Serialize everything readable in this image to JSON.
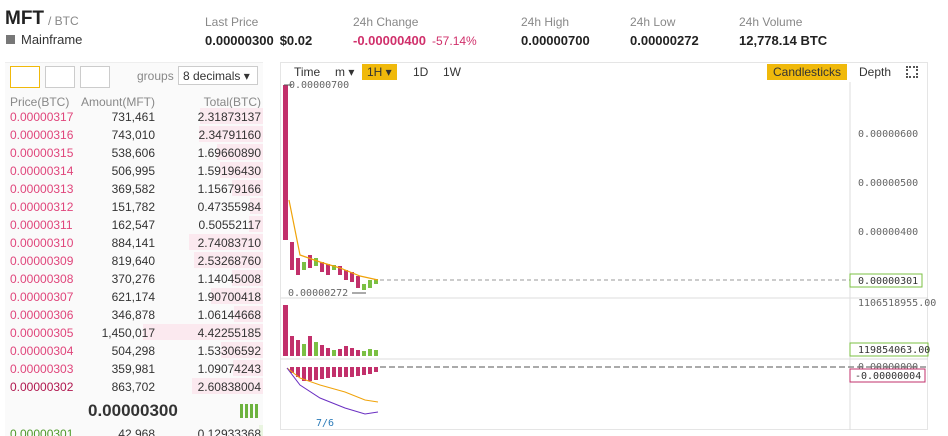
{
  "header": {
    "symbol": "MFT",
    "quote": "/ BTC",
    "name": "Mainframe",
    "stats": [
      {
        "label": "Last Price",
        "value": "0.00000300",
        "extra": "$0.02"
      },
      {
        "label": "24h Change",
        "value": "-0.00000400",
        "extra": "-57.14%"
      },
      {
        "label": "24h High",
        "value": "0.00000700"
      },
      {
        "label": "24h Low",
        "value": "0.00000272"
      },
      {
        "label": "24h Volume",
        "value": "12,778.14 BTC"
      }
    ]
  },
  "order_book": {
    "groups_label": "groups",
    "decimals": "8 decimals",
    "columns": [
      "Price(BTC)",
      "Amount(MFT)",
      "Total(BTC)"
    ],
    "asks": [
      [
        "0.00000317",
        "731,461",
        "2.31873137"
      ],
      [
        "0.00000316",
        "743,010",
        "2.34791160"
      ],
      [
        "0.00000315",
        "538,606",
        "1.69660890"
      ],
      [
        "0.00000314",
        "506,995",
        "1.59196430"
      ],
      [
        "0.00000313",
        "369,582",
        "1.15679166"
      ],
      [
        "0.00000312",
        "151,782",
        "0.47355984"
      ],
      [
        "0.00000311",
        "162,547",
        "0.50552117"
      ],
      [
        "0.00000310",
        "884,141",
        "2.74083710"
      ],
      [
        "0.00000309",
        "819,640",
        "2.53268760"
      ],
      [
        "0.00000308",
        "370,276",
        "1.14045008"
      ],
      [
        "0.00000307",
        "621,174",
        "1.90700418"
      ],
      [
        "0.00000306",
        "346,878",
        "1.06144668"
      ],
      [
        "0.00000305",
        "1,450,017",
        "4.42255185"
      ],
      [
        "0.00000304",
        "504,298",
        "1.53306592"
      ],
      [
        "0.00000303",
        "359,981",
        "1.09074243"
      ],
      [
        "0.00000302",
        "863,702",
        "2.60838004"
      ]
    ],
    "last_price": "0.00000300",
    "bids": [
      [
        "0.00000301",
        "42,968",
        "0.12933368"
      ]
    ]
  },
  "chart": {
    "intervals": [
      "Time",
      "m",
      "1H",
      "1D",
      "1W"
    ],
    "views": [
      "Candlesticks",
      "Depth"
    ],
    "high_label": "0.00000700",
    "low_label": "0.00000272",
    "price_axis": [
      "0.00000600",
      "0.00000500",
      "0.00000400"
    ],
    "current_price": "0.00000301",
    "volume_axis": "1106518955.00",
    "current_volume": "119854063.00",
    "macd_axis": "0.00000000",
    "current_macd": "-0.00000004",
    "date_label": "7/6"
  }
}
